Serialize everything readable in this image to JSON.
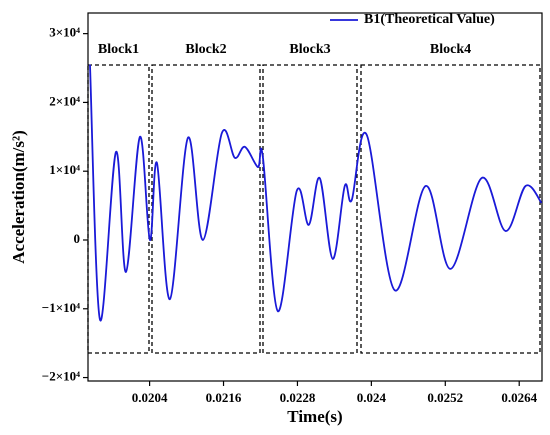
{
  "chart_data": {
    "type": "line",
    "xlabel": "Time(s)",
    "ylabel": "Acceleration(m/s²)",
    "x": [
      0.019432,
      0.019595,
      0.019854,
      0.020016,
      0.020243,
      0.020405,
      0.020519,
      0.02073,
      0.021022,
      0.021265,
      0.021573,
      0.021784,
      0.021946,
      0.022157,
      0.022238,
      0.022481,
      0.022789,
      0.022984,
      0.023162,
      0.023373,
      0.023568,
      0.023681,
      0.023924,
      0.024378,
      0.024881,
      0.025286,
      0.025789,
      0.026178,
      0.026503,
      0.026762
    ],
    "series": [
      {
        "name": "B1(Theoretical Value)",
        "color": "#1a1ad8",
        "values": [
          25500,
          -11600,
          12800,
          -4650,
          15000,
          0,
          11200,
          -8600,
          14850,
          0,
          15550,
          11950,
          13550,
          10600,
          12100,
          -10350,
          7150,
          2200,
          9000,
          -2750,
          7850,
          5800,
          15300,
          -7300,
          7850,
          -4200,
          9000,
          1300,
          7850,
          5400
        ]
      }
    ],
    "annotations": [
      "Block1",
      "Block2",
      "Block3",
      "Block4"
    ],
    "xlim": [
      0.0194,
      0.02677
    ],
    "xticks": [
      0.0204,
      0.0216,
      0.0228,
      0.024,
      0.0252,
      0.0264
    ],
    "xtick_labels_override": null,
    "ylim": [
      -20500,
      33000
    ],
    "yticks": [
      {
        "value": -20000,
        "label": "−2×10⁴"
      },
      {
        "value": -10000,
        "label": "−1×10⁴"
      },
      0,
      {
        "value": 10000,
        "label": "1×10⁴"
      },
      {
        "value": 20000,
        "label": "2×10⁴"
      },
      {
        "value": 30000,
        "label": "3×10⁴"
      }
    ],
    "legend": "upper right",
    "grid": false
  }
}
